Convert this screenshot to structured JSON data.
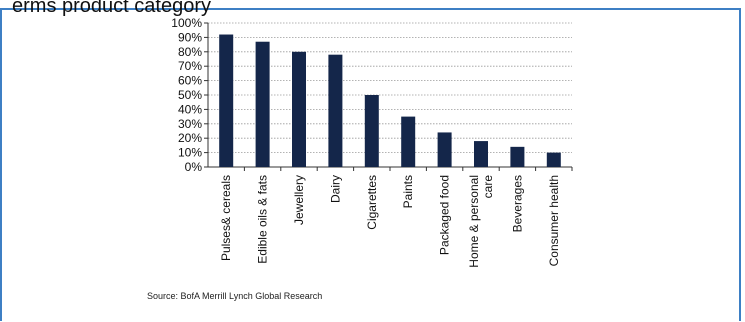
{
  "header": {
    "cut_title": "erms product category"
  },
  "source": "Source: BofA Merrill Lynch Global Research",
  "colors": {
    "bar": "#14264a",
    "frame": "#3d7fc4",
    "grid": "#9a9a9a",
    "axis": "#333333"
  },
  "chart_data": {
    "type": "bar",
    "title": "",
    "xlabel": "",
    "ylabel": "",
    "ylim": [
      0,
      100
    ],
    "yticks": [
      "0%",
      "10%",
      "20%",
      "30%",
      "40%",
      "50%",
      "60%",
      "70%",
      "80%",
      "90%",
      "100%"
    ],
    "grid": true,
    "categories": [
      [
        "Pulses& cereals"
      ],
      [
        "Edible oils & fats"
      ],
      [
        "Jewellery"
      ],
      [
        "Dairy"
      ],
      [
        "Cigarettes"
      ],
      [
        "Paints"
      ],
      [
        "Packaged food"
      ],
      [
        "Home & personal",
        "care"
      ],
      [
        "Beverages"
      ],
      [
        "Consumer health"
      ]
    ],
    "values": [
      92,
      87,
      80,
      78,
      50,
      35,
      24,
      18,
      14,
      10
    ]
  }
}
